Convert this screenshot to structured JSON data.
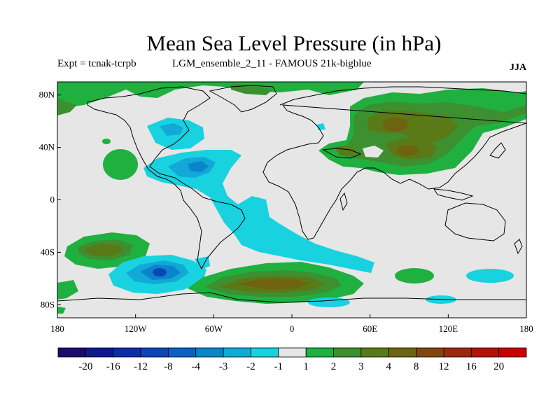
{
  "title": "Mean Sea Level Pressure (in hPa)",
  "subtitle_left": "Expt = tcnak-tcrpb",
  "subtitle_mid": "LGM_ensemble_2_11 - FAMOUS 21k-bigblue",
  "season": "JJA",
  "chart_data": {
    "type": "heatmap",
    "projection": "cylindrical-equidistant",
    "variable": "Mean sea level pressure difference",
    "units": "hPa",
    "xlim": [
      -180,
      180
    ],
    "ylim": [
      -90,
      90
    ],
    "x_ticks": [
      {
        "lon": -180,
        "label": "180"
      },
      {
        "lon": -120,
        "label": "120W"
      },
      {
        "lon": -60,
        "label": "60W"
      },
      {
        "lon": 0,
        "label": "0"
      },
      {
        "lon": 60,
        "label": "60E"
      },
      {
        "lon": 120,
        "label": "120E"
      },
      {
        "lon": 180,
        "label": "180"
      }
    ],
    "y_ticks": [
      {
        "lat": 80,
        "label": "80N"
      },
      {
        "lat": 40,
        "label": "40N"
      },
      {
        "lat": 0,
        "label": "0"
      },
      {
        "lat": -40,
        "label": "40S"
      },
      {
        "lat": -80,
        "label": "80S"
      }
    ],
    "colorbar": {
      "boundaries": [
        "-20",
        "-16",
        "-12",
        "-8",
        "-4",
        "-3",
        "-2",
        "-1",
        "1",
        "2",
        "3",
        "4",
        "8",
        "12",
        "16",
        "20"
      ],
      "colors": [
        "#1c0a6e",
        "#0d1a8c",
        "#0a2ea6",
        "#0a46b4",
        "#0a62c0",
        "#0a85cc",
        "#12a8d8",
        "#18d2e0",
        "#e6e6e6",
        "#20b040",
        "#3c9030",
        "#5a7a18",
        "#6e6410",
        "#82460a",
        "#9a2a0a",
        "#b01408",
        "#c80000"
      ]
    },
    "regions": [
      {
        "name": "north-atlantic-high-anomaly",
        "lon": -20,
        "lat": 72,
        "level_index": 9
      },
      {
        "name": "west-tropical-atlantic-low-anomaly",
        "lon": -72,
        "lat": 25,
        "level_index": 6
      },
      {
        "name": "south-atlantic-low-anomaly-band",
        "lon": -10,
        "lat": -30,
        "level_index": 7
      },
      {
        "name": "south-pacific-low-anomaly",
        "lon": -100,
        "lat": -55,
        "level_index": 5
      },
      {
        "name": "south-pacific-high-anomaly",
        "lon": -130,
        "lat": -37,
        "level_index": 11
      },
      {
        "name": "southern-ocean-high-anomaly",
        "lon": -5,
        "lat": -62,
        "level_index": 12
      },
      {
        "name": "eurasia-high-anomaly",
        "lon": 85,
        "lat": 55,
        "level_index": 12
      },
      {
        "name": "tibet-high-anomaly",
        "lon": 85,
        "lat": 36,
        "level_index": 12
      }
    ]
  }
}
